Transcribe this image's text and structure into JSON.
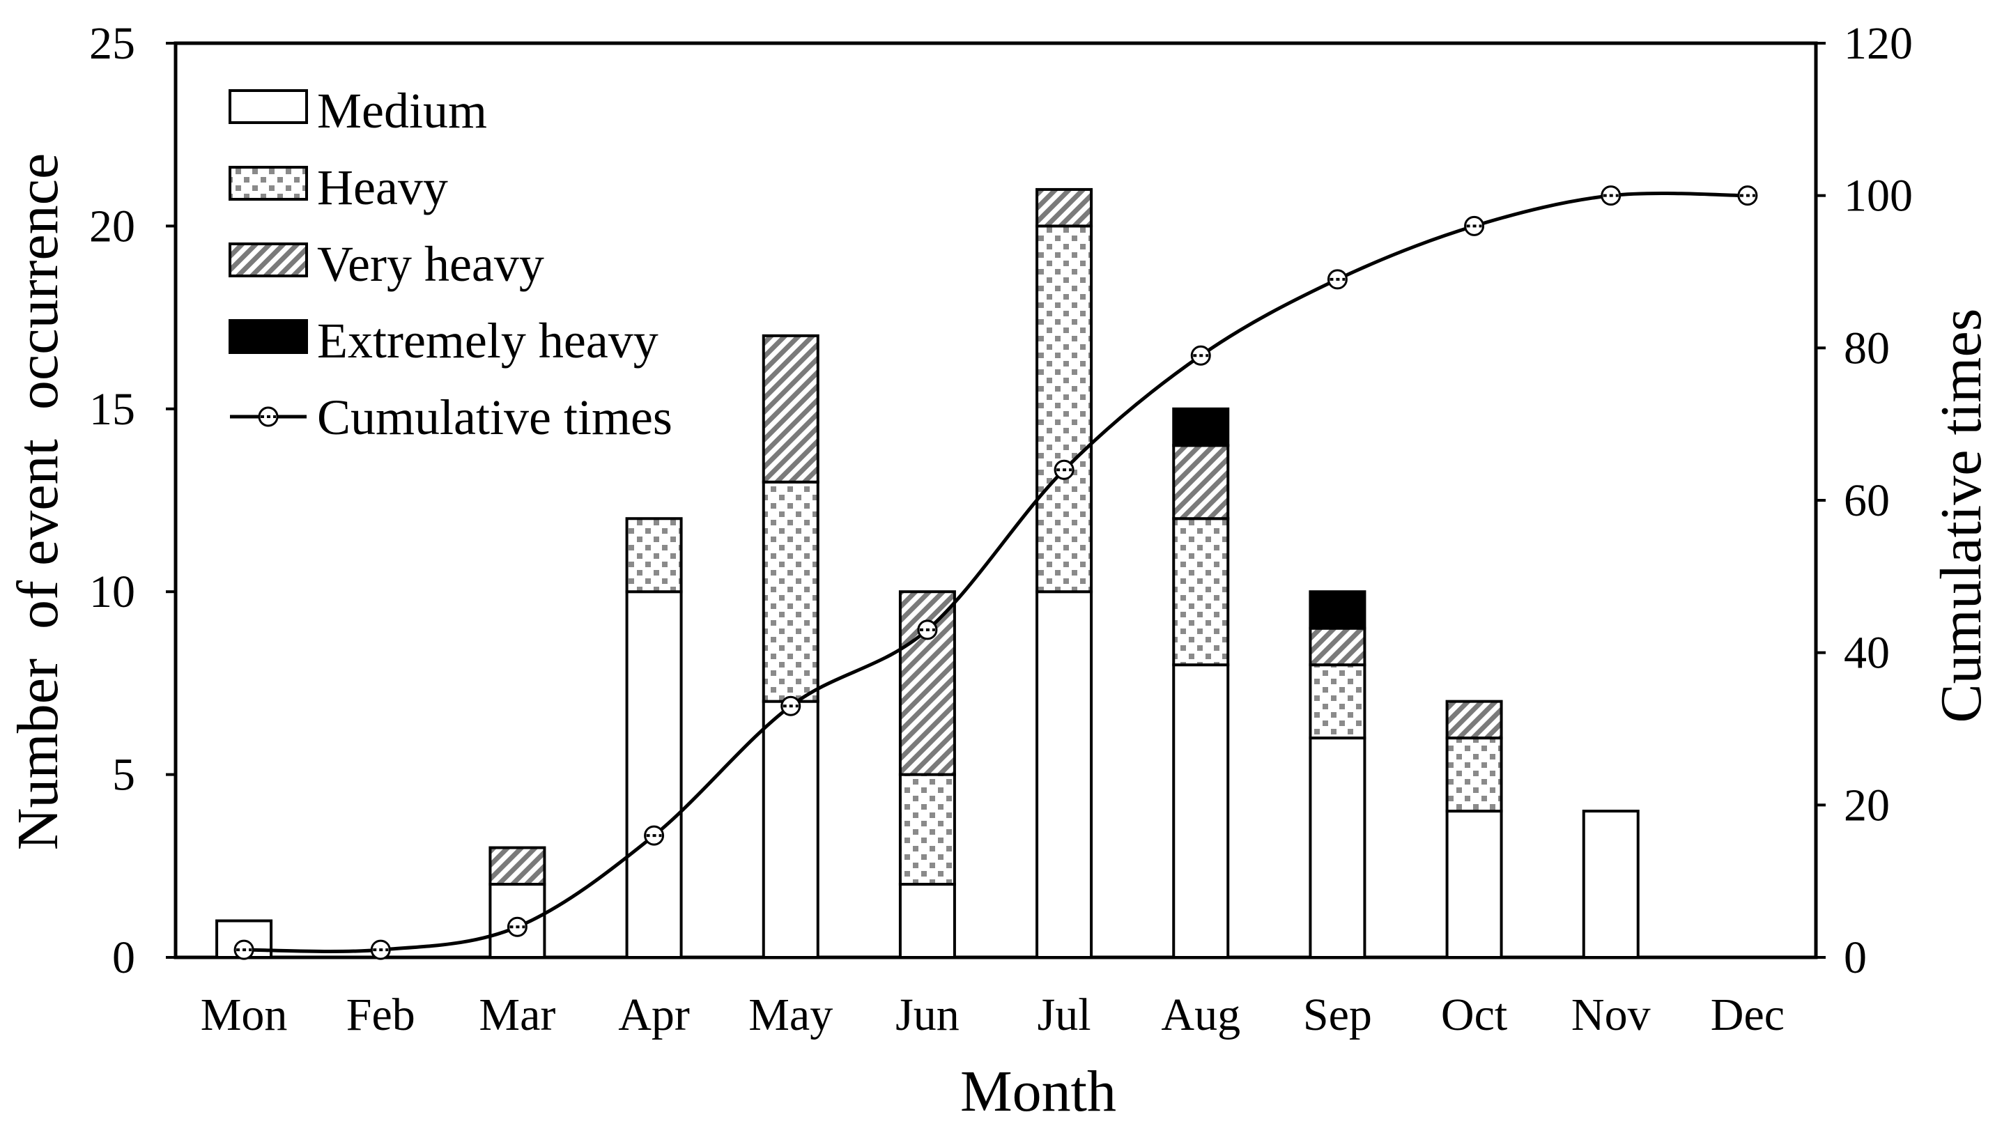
{
  "chart_data": {
    "type": "bar",
    "stacked": true,
    "categories": [
      "Mon",
      "Feb",
      "Mar",
      "Apr",
      "May",
      "Jun",
      "Jul",
      "Aug",
      "Sep",
      "Oct",
      "Nov",
      "Dec"
    ],
    "series": [
      {
        "name": "Medium",
        "pattern": "white",
        "values": [
          1,
          0,
          2,
          10,
          7,
          2,
          10,
          8,
          6,
          4,
          4,
          0
        ]
      },
      {
        "name": "Heavy",
        "pattern": "dotted",
        "values": [
          0,
          0,
          0,
          2,
          6,
          3,
          10,
          4,
          2,
          2,
          0,
          0
        ]
      },
      {
        "name": "Very heavy",
        "pattern": "hatched",
        "values": [
          0,
          0,
          1,
          0,
          4,
          5,
          1,
          2,
          1,
          1,
          0,
          0
        ]
      },
      {
        "name": "Extremely heavy",
        "pattern": "black",
        "values": [
          0,
          0,
          0,
          0,
          0,
          0,
          0,
          1,
          1,
          0,
          0,
          0
        ]
      }
    ],
    "line_series": {
      "name": "Cumulative times",
      "axis": "right",
      "values": [
        1,
        1,
        4,
        16,
        33,
        43,
        64,
        79,
        89,
        96,
        100,
        100
      ]
    },
    "xlabel": "Month",
    "ylabel": "Number  of event  occurrence",
    "ylabel_right": "Cumulative times",
    "ylim": [
      0,
      25
    ],
    "ylim_right": [
      0,
      120
    ],
    "yticks": [
      "0",
      "5",
      "10",
      "15",
      "20",
      "25"
    ],
    "yticks_right": [
      "0",
      "20",
      "40",
      "60",
      "80",
      "100",
      "120"
    ],
    "legend_position": "top-left"
  },
  "colors": {
    "stroke": "#000000",
    "medium_fill": "#ffffff",
    "heavy_dot": "#8a8a8a",
    "very_heavy_stripe": "#7a7a7a",
    "extremely_heavy_fill": "#000000"
  }
}
